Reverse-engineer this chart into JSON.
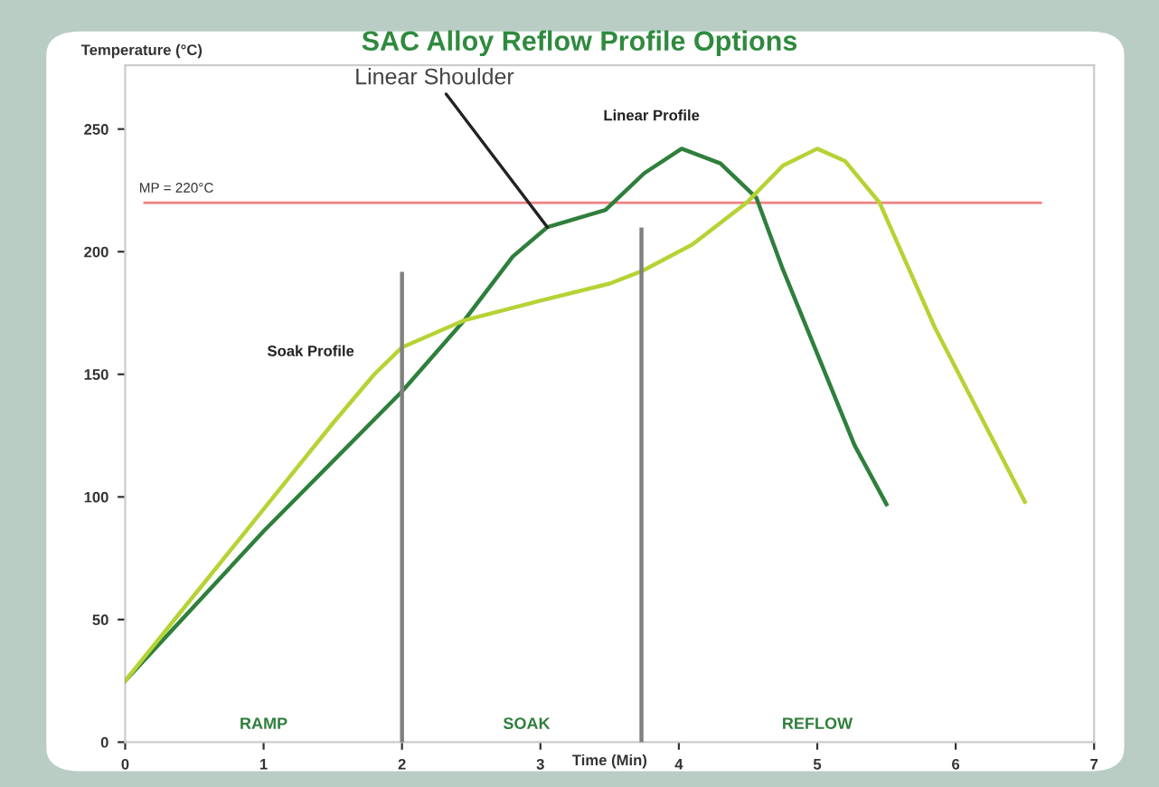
{
  "chart_data": {
    "type": "line",
    "title": "SAC Alloy Reflow Profile Options",
    "xlabel": "Time (Min)",
    "ylabel": "Temperature (°C)",
    "xlim": [
      0,
      7
    ],
    "xticks": [
      0,
      1,
      2,
      3,
      4,
      5,
      6,
      7
    ],
    "ylim": [
      0,
      276
    ],
    "yticks": [
      0,
      50,
      100,
      150,
      200,
      250
    ],
    "grid": false,
    "legend": false,
    "marker": "none",
    "line_style": "solid",
    "series": [
      {
        "name": "Linear Profile",
        "color": "#2f7f3c",
        "x": [
          0,
          1,
          2,
          2.45,
          2.8,
          3.05,
          3.47,
          3.75,
          4.02,
          4.3,
          4.56,
          4.75,
          5.27,
          5.5
        ],
        "values": [
          25,
          86,
          143,
          172,
          198,
          210,
          217,
          232,
          242,
          236,
          222,
          193,
          121,
          97
        ]
      },
      {
        "name": "Soak Profile",
        "color": "#b5d334",
        "x": [
          0,
          0.5,
          1,
          1.5,
          1.8,
          2,
          2.45,
          3,
          3.5,
          3.73,
          4.1,
          4.49,
          4.75,
          5,
          5.2,
          5.45,
          5.85,
          6.5
        ],
        "values": [
          25,
          60,
          95,
          130,
          150,
          161,
          172,
          180,
          187,
          192,
          203,
          220,
          235,
          242,
          237,
          220,
          169,
          98
        ]
      },
      {
        "color": "#808080",
        "x": [
          2,
          2
        ],
        "values": [
          0,
          191
        ]
      },
      {
        "color": "#808080",
        "x": [
          3.73,
          3.73
        ],
        "values": [
          0,
          209
        ]
      }
    ],
    "ref_lines": [
      {
        "axis": "y",
        "value": 220,
        "label": "MP = 220°C",
        "color": "#f08080"
      }
    ],
    "annotations": [
      {
        "text": "Linear Shoulder",
        "x": 3.05,
        "y": 210
      },
      "RAMP",
      "SOAK",
      "REFLOW"
    ]
  }
}
